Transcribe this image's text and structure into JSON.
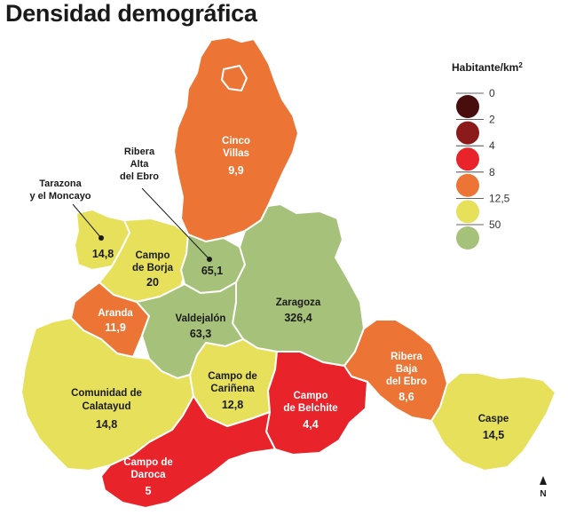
{
  "title": "Densidad demográfica",
  "legend": {
    "title": "Habitante/km",
    "title_sup": "2",
    "breaks": [
      "0",
      "2",
      "4",
      "8",
      "12,5",
      "50"
    ],
    "swatches": [
      "#4a0d0d",
      "#8b1a1a",
      "#e8232a",
      "#ec7536",
      "#e6e05a",
      "#a6c27a"
    ]
  },
  "regions": {
    "cinco_villas": {
      "name_1": "Cinco",
      "name_2": "Villas",
      "value": "9,9",
      "color": "#ec7536"
    },
    "tarazona": {
      "name_1": "Tarazona",
      "name_2": "y el Moncayo",
      "value": "14,8",
      "color": "#e6e05a"
    },
    "campo_borja": {
      "name_1": "Campo",
      "name_2": "de Borja",
      "value": "20",
      "color": "#e6e05a"
    },
    "ribera_alta": {
      "name_1": "Ribera",
      "name_2": "Alta",
      "name_3": "del Ebro",
      "value": "65,1",
      "color": "#a6c27a"
    },
    "zaragoza": {
      "name_1": "Zaragoza",
      "value": "326,4",
      "color": "#a6c27a"
    },
    "aranda": {
      "name_1": "Aranda",
      "value": "11,9",
      "color": "#ec7536"
    },
    "valdejalon": {
      "name_1": "Valdejalón",
      "value": "63,3",
      "color": "#a6c27a"
    },
    "ribera_baja": {
      "name_1": "Ribera",
      "name_2": "Baja",
      "name_3": "del Ebro",
      "value": "8,6",
      "color": "#ec7536"
    },
    "calatayud": {
      "name_1": "Comunidad de",
      "name_2": "Calatayud",
      "value": "14,8",
      "color": "#e6e05a"
    },
    "carinena": {
      "name_1": "Campo de",
      "name_2": "Cariñena",
      "value": "12,8",
      "color": "#e6e05a"
    },
    "belchite": {
      "name_1": "Campo",
      "name_2": "de Belchite",
      "value": "4,4",
      "color": "#e8232a"
    },
    "caspe": {
      "name_1": "Caspe",
      "value": "14,5",
      "color": "#e6e05a"
    },
    "daroca": {
      "name_1": "Campo de",
      "name_2": "Daroca",
      "value": "5",
      "color": "#e8232a"
    }
  },
  "north_label": "N"
}
